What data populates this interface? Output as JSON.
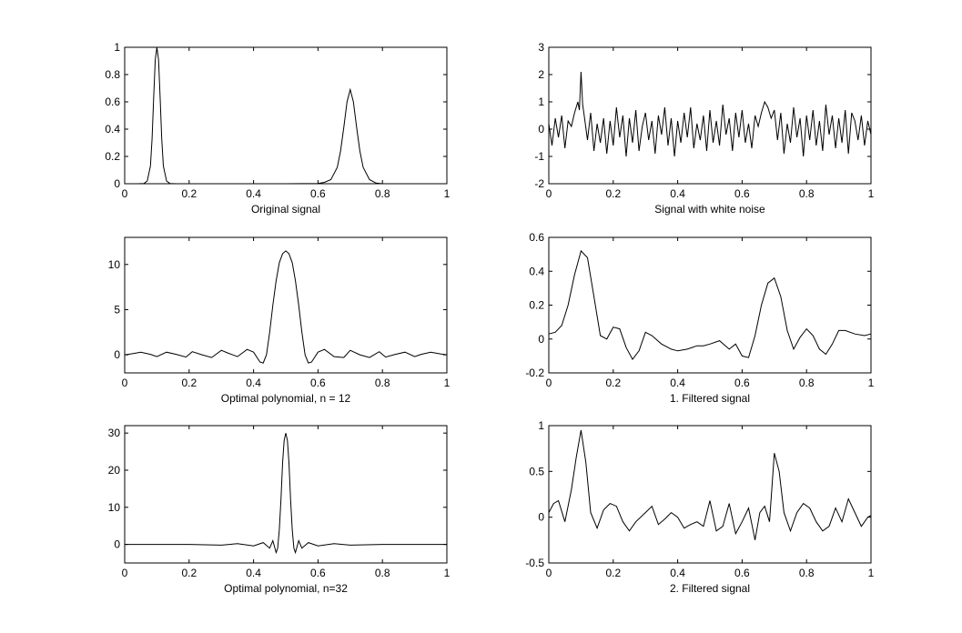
{
  "chart_data": [
    {
      "type": "line",
      "xlabel": "Original signal",
      "xlim": [
        0,
        1
      ],
      "ylim": [
        0,
        1
      ],
      "xticks": [
        "0",
        "0.2",
        "0.4",
        "0.6",
        "0.8",
        "1"
      ],
      "yticks": [
        "0",
        "0.2",
        "0.4",
        "0.6",
        "0.8",
        "1"
      ],
      "series": [
        {
          "x": [
            0,
            0.04,
            0.06,
            0.07,
            0.08,
            0.085,
            0.09,
            0.095,
            0.1,
            0.105,
            0.11,
            0.115,
            0.12,
            0.13,
            0.14,
            0.16,
            0.3,
            0.5,
            0.6,
            0.62,
            0.64,
            0.66,
            0.67,
            0.68,
            0.69,
            0.7,
            0.71,
            0.72,
            0.73,
            0.74,
            0.76,
            0.78,
            0.8,
            1
          ],
          "y": [
            0,
            0,
            0.002,
            0.02,
            0.13,
            0.33,
            0.64,
            0.91,
            1.0,
            0.91,
            0.64,
            0.33,
            0.13,
            0.02,
            0.002,
            0,
            0,
            0,
            0.002,
            0.01,
            0.03,
            0.12,
            0.24,
            0.41,
            0.6,
            0.69,
            0.6,
            0.41,
            0.24,
            0.12,
            0.03,
            0.005,
            0,
            0
          ]
        }
      ]
    },
    {
      "type": "line",
      "xlabel": "Signal with white noise",
      "xlim": [
        0,
        1
      ],
      "ylim": [
        -2,
        3
      ],
      "xticks": [
        "0",
        "0.2",
        "0.4",
        "0.6",
        "0.8",
        "1"
      ],
      "yticks": [
        "-2",
        "-1",
        "0",
        "1",
        "2",
        "3"
      ],
      "series": [
        {
          "x": [
            0,
            0.01,
            0.02,
            0.03,
            0.04,
            0.05,
            0.06,
            0.07,
            0.08,
            0.09,
            0.095,
            0.1,
            0.105,
            0.11,
            0.12,
            0.13,
            0.14,
            0.15,
            0.16,
            0.17,
            0.18,
            0.19,
            0.2,
            0.21,
            0.22,
            0.23,
            0.24,
            0.25,
            0.26,
            0.27,
            0.28,
            0.29,
            0.3,
            0.31,
            0.32,
            0.33,
            0.34,
            0.35,
            0.36,
            0.37,
            0.38,
            0.39,
            0.4,
            0.41,
            0.42,
            0.43,
            0.44,
            0.45,
            0.46,
            0.47,
            0.48,
            0.49,
            0.5,
            0.51,
            0.52,
            0.53,
            0.54,
            0.55,
            0.56,
            0.57,
            0.58,
            0.59,
            0.6,
            0.61,
            0.62,
            0.63,
            0.64,
            0.65,
            0.66,
            0.67,
            0.68,
            0.69,
            0.7,
            0.71,
            0.72,
            0.73,
            0.74,
            0.75,
            0.76,
            0.77,
            0.78,
            0.79,
            0.8,
            0.81,
            0.82,
            0.83,
            0.84,
            0.85,
            0.86,
            0.87,
            0.88,
            0.89,
            0.9,
            0.91,
            0.92,
            0.93,
            0.94,
            0.95,
            0.96,
            0.97,
            0.98,
            0.99,
            1
          ],
          "y": [
            0.2,
            -0.6,
            0.4,
            -0.3,
            0.5,
            -0.7,
            0.3,
            0.1,
            0.6,
            1.0,
            0.7,
            2.1,
            0.9,
            0.5,
            -0.4,
            0.6,
            -0.8,
            0.2,
            -0.5,
            0.4,
            -0.9,
            0.3,
            -0.6,
            0.8,
            -0.3,
            0.5,
            -1.0,
            0.4,
            -0.5,
            0.7,
            -0.8,
            0.1,
            0.6,
            -0.4,
            0.3,
            -0.9,
            0.5,
            -0.2,
            0.8,
            -0.6,
            0.4,
            -1.0,
            0.3,
            -0.5,
            0.6,
            -0.3,
            0.8,
            -0.7,
            0.2,
            -0.4,
            0.5,
            -0.8,
            0.7,
            -0.5,
            0.3,
            -0.6,
            0.9,
            -0.2,
            0.4,
            -0.8,
            0.6,
            -0.3,
            0.7,
            -0.5,
            0.2,
            -0.7,
            0.5,
            0.1,
            0.6,
            1.0,
            0.8,
            0.4,
            0.7,
            -0.4,
            0.6,
            -0.9,
            0.2,
            -0.5,
            0.8,
            -0.3,
            0.4,
            -1.0,
            0.5,
            -0.4,
            0.7,
            -0.6,
            0.3,
            -0.8,
            0.9,
            -0.2,
            0.5,
            -0.7,
            0.4,
            -0.5,
            0.7,
            -0.9,
            0.6,
            0.3,
            -0.4,
            0.5,
            -0.6,
            0.3,
            -0.2
          ]
        }
      ]
    },
    {
      "type": "line",
      "xlabel": "Optimal polynomial, n = 12",
      "xlim": [
        0,
        1
      ],
      "ylim": [
        -2,
        13
      ],
      "xticks": [
        "0",
        "0.2",
        "0.4",
        "0.6",
        "0.8",
        "1"
      ],
      "yticks": [
        "0",
        "5",
        "10"
      ],
      "series": [
        {
          "x": [
            0,
            0.02,
            0.05,
            0.08,
            0.1,
            0.13,
            0.16,
            0.19,
            0.21,
            0.24,
            0.27,
            0.3,
            0.32,
            0.35,
            0.38,
            0.4,
            0.42,
            0.43,
            0.44,
            0.45,
            0.46,
            0.47,
            0.48,
            0.49,
            0.5,
            0.51,
            0.52,
            0.53,
            0.54,
            0.55,
            0.56,
            0.57,
            0.58,
            0.6,
            0.62,
            0.65,
            0.68,
            0.7,
            0.73,
            0.76,
            0.79,
            0.81,
            0.84,
            0.87,
            0.9,
            0.92,
            0.95,
            0.98,
            1
          ],
          "y": [
            0,
            0.1,
            0.3,
            0.05,
            -0.2,
            0.3,
            0.05,
            -0.25,
            0.35,
            0.0,
            -0.3,
            0.5,
            0.2,
            -0.2,
            0.6,
            0.3,
            -0.8,
            -0.9,
            0.0,
            2.5,
            5.5,
            8.2,
            10.2,
            11.2,
            11.5,
            11.2,
            10.2,
            8.2,
            5.5,
            2.5,
            0.0,
            -0.9,
            -0.8,
            0.3,
            0.6,
            -0.2,
            -0.3,
            0.5,
            0.0,
            -0.3,
            0.35,
            -0.25,
            0.05,
            0.3,
            -0.2,
            0.05,
            0.3,
            0.1,
            0
          ]
        }
      ]
    },
    {
      "type": "line",
      "xlabel": "1. Filtered signal",
      "xlim": [
        0,
        1
      ],
      "ylim": [
        -0.2,
        0.6
      ],
      "xticks": [
        "0",
        "0.2",
        "0.4",
        "0.6",
        "0.8",
        "1"
      ],
      "yticks": [
        "-0.2",
        "0",
        "0.2",
        "0.4",
        "0.6"
      ],
      "series": [
        {
          "x": [
            0,
            0.02,
            0.04,
            0.06,
            0.08,
            0.1,
            0.12,
            0.14,
            0.16,
            0.18,
            0.2,
            0.22,
            0.24,
            0.26,
            0.28,
            0.3,
            0.32,
            0.35,
            0.38,
            0.4,
            0.43,
            0.46,
            0.48,
            0.5,
            0.53,
            0.56,
            0.58,
            0.6,
            0.62,
            0.64,
            0.66,
            0.68,
            0.7,
            0.72,
            0.74,
            0.76,
            0.78,
            0.8,
            0.82,
            0.84,
            0.86,
            0.88,
            0.9,
            0.92,
            0.95,
            0.98,
            1
          ],
          "y": [
            0.03,
            0.04,
            0.08,
            0.2,
            0.38,
            0.52,
            0.48,
            0.25,
            0.02,
            0.0,
            0.07,
            0.06,
            -0.05,
            -0.12,
            -0.07,
            0.04,
            0.02,
            -0.03,
            -0.06,
            -0.07,
            -0.06,
            -0.04,
            -0.04,
            -0.03,
            -0.01,
            -0.06,
            -0.03,
            -0.1,
            -0.11,
            0.02,
            0.2,
            0.33,
            0.36,
            0.25,
            0.05,
            -0.06,
            0.01,
            0.06,
            0.02,
            -0.06,
            -0.09,
            -0.03,
            0.05,
            0.05,
            0.03,
            0.02,
            0.03
          ]
        }
      ]
    },
    {
      "type": "line",
      "xlabel": "Optimal polynomial, n=32",
      "xlim": [
        0,
        1
      ],
      "ylim": [
        -5,
        32
      ],
      "xticks": [
        "0",
        "0.2",
        "0.4",
        "0.6",
        "0.8",
        "1"
      ],
      "yticks": [
        "0",
        "10",
        "20",
        "30"
      ],
      "series": [
        {
          "x": [
            0,
            0.2,
            0.3,
            0.35,
            0.4,
            0.43,
            0.45,
            0.46,
            0.47,
            0.475,
            0.48,
            0.485,
            0.49,
            0.495,
            0.5,
            0.505,
            0.51,
            0.515,
            0.52,
            0.525,
            0.53,
            0.54,
            0.55,
            0.57,
            0.6,
            0.65,
            0.7,
            0.8,
            1
          ],
          "y": [
            0,
            0,
            -0.2,
            0.2,
            -0.4,
            0.5,
            -1.0,
            1.0,
            -2.2,
            -1.0,
            4,
            12,
            22,
            28,
            30,
            28,
            22,
            12,
            4,
            -1.0,
            -2.2,
            1.0,
            -1.0,
            0.5,
            -0.4,
            0.2,
            -0.2,
            0,
            0
          ]
        }
      ]
    },
    {
      "type": "line",
      "xlabel": "2. Filtered signal",
      "xlim": [
        0,
        1
      ],
      "ylim": [
        -0.5,
        1.0
      ],
      "xticks": [
        "0",
        "0.2",
        "0.4",
        "0.6",
        "0.8",
        "1"
      ],
      "yticks": [
        "-0.5",
        "0",
        "0.5",
        "1"
      ],
      "series": [
        {
          "x": [
            0,
            0.015,
            0.03,
            0.05,
            0.07,
            0.085,
            0.1,
            0.115,
            0.13,
            0.15,
            0.17,
            0.19,
            0.21,
            0.23,
            0.25,
            0.27,
            0.3,
            0.32,
            0.34,
            0.36,
            0.38,
            0.4,
            0.42,
            0.44,
            0.46,
            0.48,
            0.5,
            0.52,
            0.54,
            0.56,
            0.58,
            0.6,
            0.62,
            0.64,
            0.655,
            0.67,
            0.685,
            0.7,
            0.715,
            0.73,
            0.75,
            0.77,
            0.79,
            0.81,
            0.83,
            0.85,
            0.87,
            0.89,
            0.91,
            0.93,
            0.95,
            0.97,
            0.99,
            1
          ],
          "y": [
            0.05,
            0.15,
            0.18,
            -0.05,
            0.3,
            0.65,
            0.95,
            0.6,
            0.05,
            -0.12,
            0.08,
            0.15,
            0.12,
            -0.05,
            -0.15,
            -0.05,
            0.05,
            0.12,
            -0.08,
            -0.02,
            0.05,
            0.0,
            -0.12,
            -0.08,
            -0.05,
            -0.1,
            0.18,
            -0.15,
            -0.1,
            0.15,
            -0.18,
            -0.05,
            0.1,
            -0.25,
            0.05,
            0.12,
            -0.05,
            0.7,
            0.5,
            0.05,
            -0.15,
            0.05,
            0.15,
            0.1,
            -0.05,
            -0.15,
            -0.1,
            0.1,
            -0.05,
            0.2,
            0.05,
            -0.1,
            0.0,
            0.02
          ]
        }
      ]
    }
  ]
}
